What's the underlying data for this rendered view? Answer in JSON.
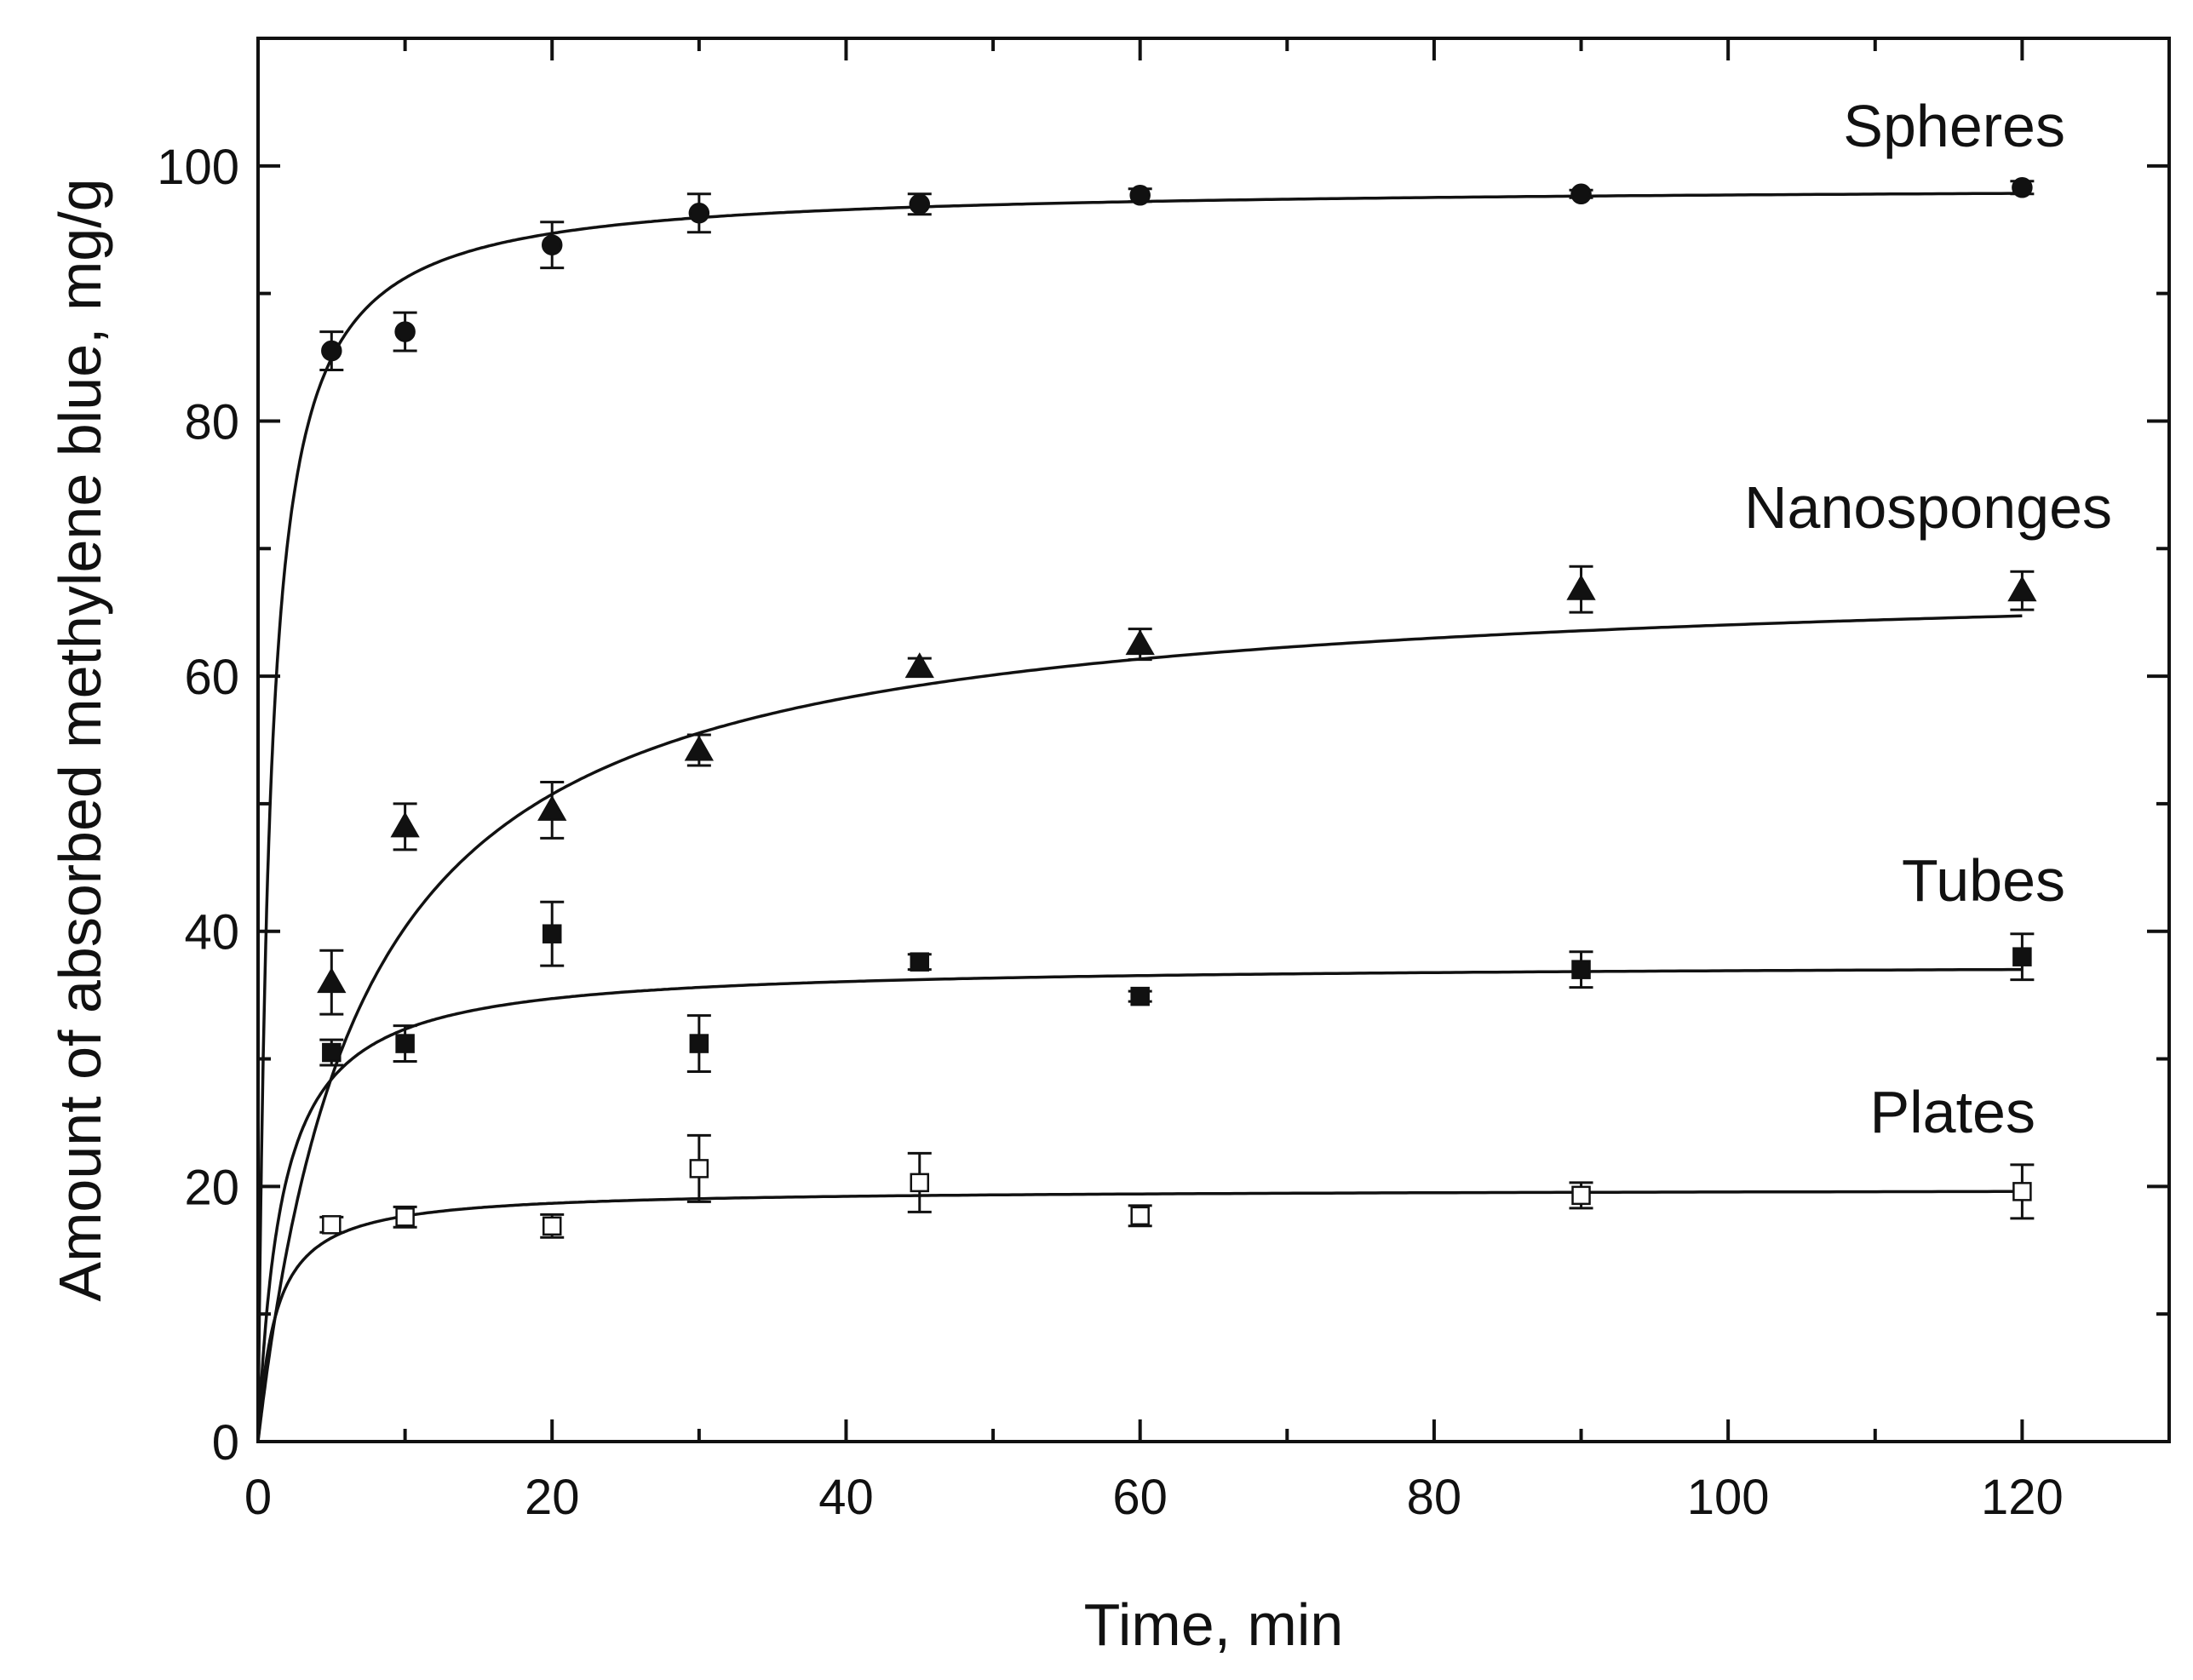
{
  "chart_data": {
    "type": "scatter",
    "title": "",
    "xlabel": "Time, min",
    "ylabel": "Amount of absorbed methylene blue, mg/g",
    "xlim": [
      0,
      130
    ],
    "ylim": [
      0,
      110
    ],
    "x_ticks": [
      0,
      20,
      40,
      60,
      80,
      100,
      120
    ],
    "y_ticks": [
      0,
      20,
      40,
      60,
      80,
      100
    ],
    "x_minor_step": 10,
    "y_minor_step": 10,
    "colors": {
      "axis": "#111111",
      "marker": "#111111",
      "hollow_fill": "#ffffff",
      "background": "#ffffff"
    },
    "series": [
      {
        "name": "Spheres",
        "marker": "circle",
        "filled": true,
        "fit": {
          "model": "pseudo-second-order",
          "qe": 98.5,
          "half_time": 0.8
        },
        "points": [
          {
            "x": 5,
            "y": 85.5,
            "err": 1.5
          },
          {
            "x": 10,
            "y": 87.0,
            "err": 1.5
          },
          {
            "x": 20,
            "y": 93.8,
            "err": 1.8
          },
          {
            "x": 30,
            "y": 96.3,
            "err": 1.5
          },
          {
            "x": 45,
            "y": 97.0,
            "err": 0.8
          },
          {
            "x": 60,
            "y": 97.7,
            "err": 0.5
          },
          {
            "x": 90,
            "y": 97.8,
            "err": 0.3
          },
          {
            "x": 120,
            "y": 98.3,
            "err": 0.5
          }
        ]
      },
      {
        "name": "Nanosponges",
        "marker": "triangle",
        "filled": true,
        "fit": {
          "model": "pseudo-second-order",
          "qe": 68.5,
          "half_time": 7.0
        },
        "points": [
          {
            "x": 5,
            "y": 36.0,
            "err": 2.5
          },
          {
            "x": 10,
            "y": 48.2,
            "err": 1.8
          },
          {
            "x": 20,
            "y": 49.5,
            "err": 2.2
          },
          {
            "x": 30,
            "y": 54.2,
            "err": 1.2
          },
          {
            "x": 45,
            "y": 60.7,
            "err": 0.7
          },
          {
            "x": 60,
            "y": 62.5,
            "err": 1.2
          },
          {
            "x": 90,
            "y": 66.8,
            "err": 1.8
          },
          {
            "x": 120,
            "y": 66.7,
            "err": 1.5
          }
        ]
      },
      {
        "name": "Tubes",
        "marker": "square",
        "filled": true,
        "fit": {
          "model": "pseudo-second-order",
          "qe": 37.5,
          "half_time": 1.6
        },
        "points": [
          {
            "x": 5,
            "y": 30.5,
            "err": 1.0
          },
          {
            "x": 10,
            "y": 31.2,
            "err": 1.4
          },
          {
            "x": 20,
            "y": 39.8,
            "err": 2.5
          },
          {
            "x": 30,
            "y": 31.2,
            "err": 2.2
          },
          {
            "x": 45,
            "y": 37.6,
            "err": 0.6
          },
          {
            "x": 60,
            "y": 34.9,
            "err": 0.4
          },
          {
            "x": 90,
            "y": 37.0,
            "err": 1.4
          },
          {
            "x": 120,
            "y": 38.0,
            "err": 1.8
          }
        ]
      },
      {
        "name": "Plates",
        "marker": "square",
        "filled": false,
        "fit": {
          "model": "pseudo-second-order",
          "qe": 19.8,
          "half_time": 1.2
        },
        "points": [
          {
            "x": 5,
            "y": 17.0,
            "err": 0.6
          },
          {
            "x": 10,
            "y": 17.6,
            "err": 0.8
          },
          {
            "x": 20,
            "y": 16.9,
            "err": 0.9
          },
          {
            "x": 30,
            "y": 21.4,
            "err": 2.6
          },
          {
            "x": 45,
            "y": 20.3,
            "err": 2.3
          },
          {
            "x": 60,
            "y": 17.7,
            "err": 0.8
          },
          {
            "x": 90,
            "y": 19.3,
            "err": 1.0
          },
          {
            "x": 120,
            "y": 19.6,
            "err": 2.1
          }
        ]
      }
    ]
  }
}
